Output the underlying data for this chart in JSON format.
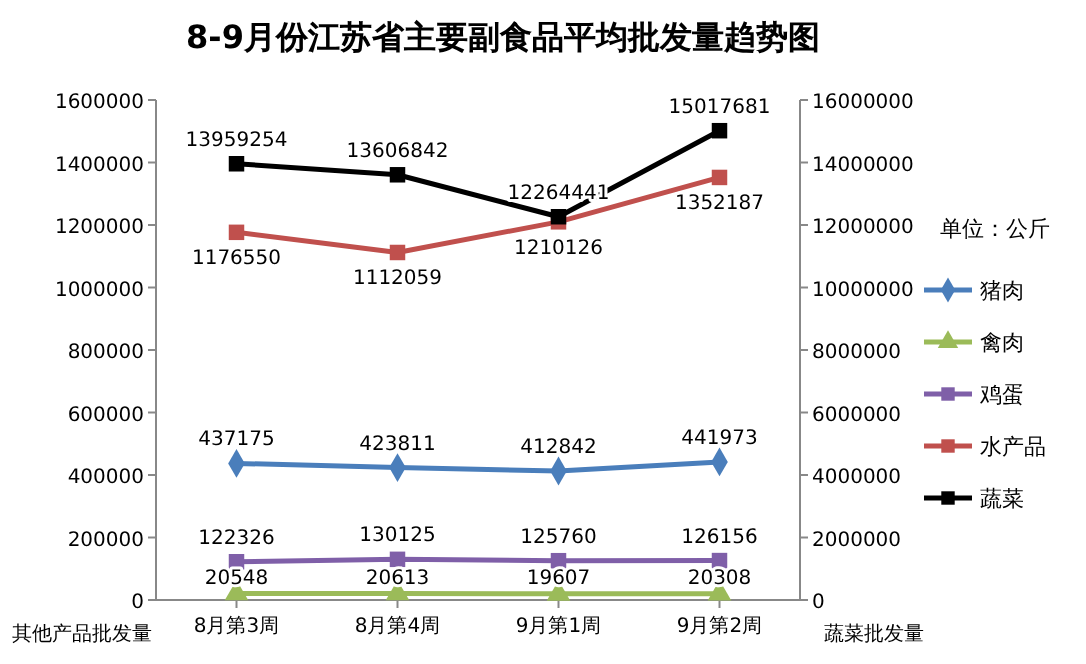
{
  "chart_data": {
    "type": "line",
    "title": "8-9月份江苏省主要副食品平均批发量趋势图",
    "categories": [
      "8月第3周",
      "8月第4周",
      "9月第1周",
      "9月第2周"
    ],
    "xlabel": "其他产品批发量",
    "ylabel": null,
    "y2label": "蔬菜批发量",
    "ylim": [
      0,
      1600000
    ],
    "yticks": [
      0,
      200000,
      400000,
      600000,
      800000,
      1000000,
      1200000,
      1400000,
      1600000
    ],
    "y2lim": [
      0,
      16000000
    ],
    "y2ticks": [
      0,
      2000000,
      4000000,
      6000000,
      8000000,
      10000000,
      12000000,
      14000000,
      16000000
    ],
    "series": [
      {
        "name": "猪肉",
        "color": "#4a7ebb",
        "marker": "diamond",
        "values": [
          437175,
          423811,
          412842,
          441973
        ]
      },
      {
        "name": "禽肉",
        "color": "#9bbb59",
        "marker": "triangle",
        "values": [
          20548,
          20613,
          19607,
          20308
        ]
      },
      {
        "name": "鸡蛋",
        "color": "#7f5fa8",
        "marker": "square",
        "values": [
          122326,
          130125,
          125760,
          126156
        ]
      },
      {
        "name": "水产品",
        "color": "#c0504d",
        "marker": "square",
        "values": [
          1176550,
          1112059,
          1210126,
          1352187
        ]
      },
      {
        "name": "蔬菜",
        "color": "#000000",
        "marker": "square",
        "axis": "y2",
        "values": [
          13959254,
          13606842,
          12264441,
          15017681
        ]
      }
    ],
    "data_labels": true,
    "legend": "right",
    "grid": false,
    "annotations": [
      "单位：公斤"
    ]
  }
}
